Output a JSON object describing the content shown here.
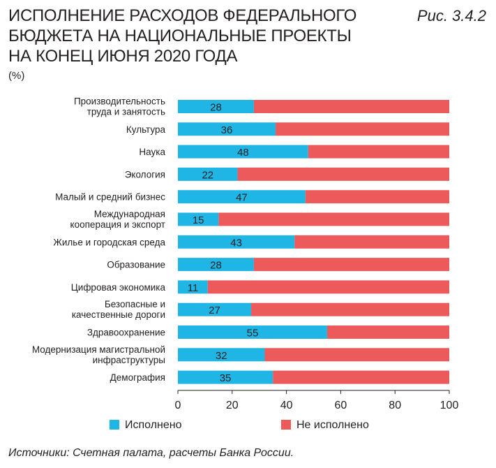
{
  "figure_label": "Рис. 3.4.2",
  "source": "Источники: Счетная палата, расчеты Банка России.",
  "colors": {
    "executed": "#1fb6e6",
    "not_executed": "#ec5a5c"
  },
  "chart_data": {
    "type": "bar",
    "orientation": "horizontal",
    "stacked": true,
    "title": "ИСПОЛНЕНИЕ РАСХОДОВ ФЕДЕРАЛЬНОГО БЮДЖЕТА НА НАЦИОНАЛЬНЫЕ ПРОЕКТЫ НА КОНЕЦ ИЮНЯ 2020 ГОДА",
    "ylabel": "(%)",
    "categories": [
      "Производительность труда и занятость",
      "Культура",
      "Наука",
      "Экология",
      "Малый и средний бизнес",
      "Международная кооперация и экспорт",
      "Жилье и городская среда",
      "Образование",
      "Цифровая экономика",
      "Безопасные и качественные дороги",
      "Здравоохранение",
      "Модернизация магистральной инфраструктуры",
      "Демография"
    ],
    "series": [
      {
        "name": "Исполнено",
        "values": [
          28,
          36,
          48,
          22,
          47,
          15,
          43,
          28,
          11,
          27,
          55,
          32,
          35
        ]
      },
      {
        "name": "Не исполнено",
        "values": [
          72,
          64,
          52,
          78,
          53,
          85,
          57,
          72,
          89,
          73,
          45,
          68,
          65
        ]
      }
    ],
    "xlim": [
      0,
      100
    ],
    "xticks": [
      0,
      20,
      40,
      60,
      80,
      100
    ],
    "grid": false,
    "legend": "bottom"
  }
}
